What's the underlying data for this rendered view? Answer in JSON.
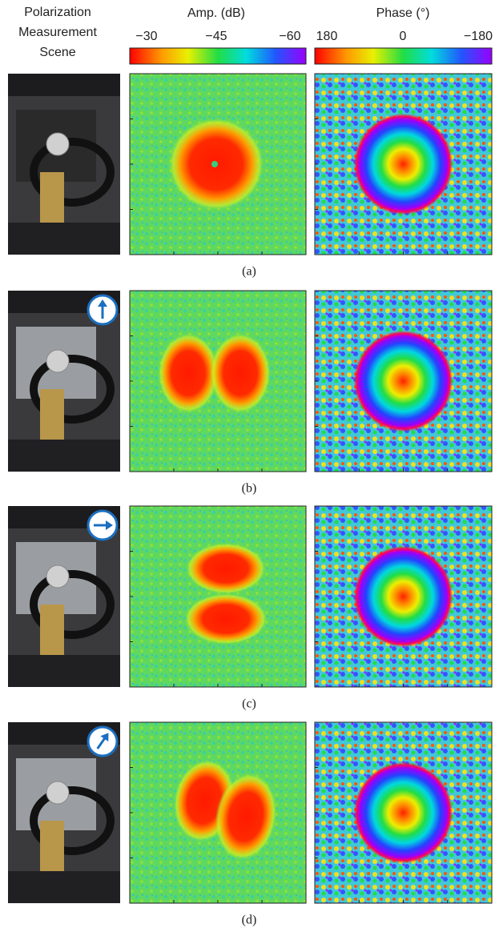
{
  "header": {
    "scene": [
      "Polarization",
      "Measurement",
      "Scene"
    ],
    "amp": {
      "title": "Amp. (dB)",
      "ticks": [
        "−30",
        "−45",
        "−60"
      ]
    },
    "phase": {
      "title": "Phase (°)",
      "ticks": [
        "180",
        "0",
        "−180"
      ]
    }
  },
  "panels": [
    {
      "caption": "(a)"
    },
    {
      "caption": "(b)"
    },
    {
      "caption": "(c)"
    },
    {
      "caption": "(d)"
    }
  ]
}
